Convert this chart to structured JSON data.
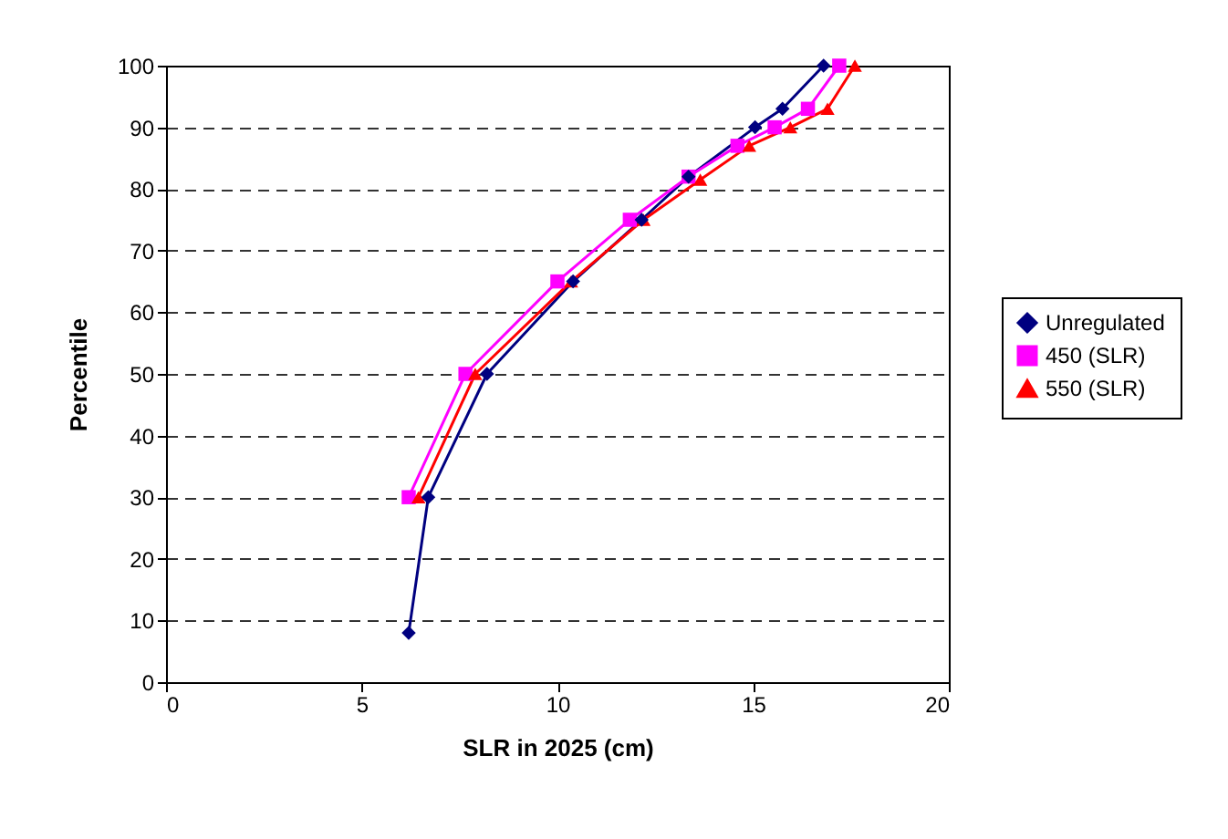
{
  "chart_data": {
    "type": "line",
    "xlabel": "SLR in 2025 (cm)",
    "ylabel": "Percentile",
    "xlim": [
      0,
      20
    ],
    "xticks": [
      0,
      5,
      10,
      15,
      20
    ],
    "ylim": [
      0,
      100
    ],
    "yticks": [
      0,
      10,
      20,
      30,
      40,
      50,
      60,
      70,
      80,
      90,
      100
    ],
    "grid": "y",
    "legend": "right",
    "series": [
      {
        "name": "Unregulated",
        "color": "#000080",
        "marker": "diamond",
        "x": [
          6.2,
          6.7,
          8.2,
          10.4,
          12.15,
          13.35,
          15.05,
          15.75,
          16.8
        ],
        "values": [
          8,
          30,
          50,
          65,
          75,
          82,
          90,
          93,
          100
        ]
      },
      {
        "name": "450 (SLR)",
        "color": "#ff00ff",
        "marker": "square",
        "x": [
          6.2,
          7.65,
          10.0,
          11.85,
          13.35,
          14.6,
          15.55,
          16.4,
          17.2
        ],
        "values": [
          30,
          50,
          65,
          75,
          82,
          87,
          90,
          93,
          100
        ]
      },
      {
        "name": "550 (SLR)",
        "color": "#ff0000",
        "marker": "triangle",
        "x": [
          6.45,
          7.9,
          10.35,
          12.2,
          13.65,
          14.9,
          15.95,
          16.9,
          17.6
        ],
        "values": [
          30,
          50,
          65,
          75,
          81.5,
          87,
          90,
          93,
          100
        ]
      }
    ]
  }
}
